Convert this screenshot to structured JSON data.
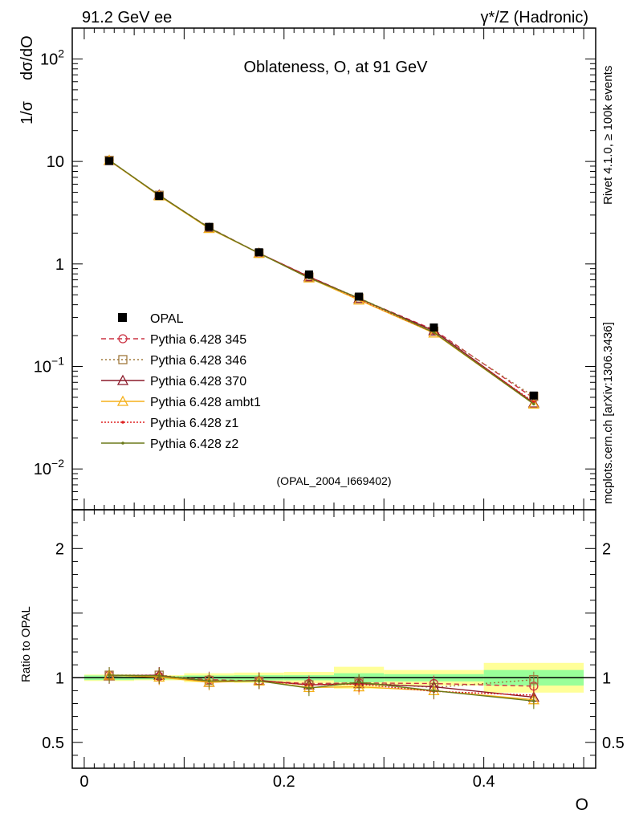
{
  "header": {
    "left": "91.2 GeV ee",
    "right": "γ*/Z (Hadronic)"
  },
  "side": {
    "rivet": "Rivet 4.1.0, ≥ 100k events",
    "mcplots": "mcplots.cern.ch [arXiv:1306.3436]"
  },
  "chart_data": [
    {
      "type": "line",
      "title": "Oblateness, O, at 91 GeV",
      "ylabel_left": "1/σ",
      "ylabel_right": "dσ/dO",
      "xlabel": "O",
      "yscale": "log",
      "ylim": [
        0.004,
        200
      ],
      "xlim": [
        -0.012,
        0.512
      ],
      "watermark": "(OPAL_2004_I669402)",
      "x": [
        0.025,
        0.075,
        0.125,
        0.175,
        0.225,
        0.275,
        0.35,
        0.45
      ],
      "data": {
        "name": "OPAL",
        "values": [
          10.1,
          4.6,
          2.3,
          1.3,
          0.79,
          0.48,
          0.24,
          0.052
        ]
      },
      "series": [
        {
          "name": "Pythia 6.428 345",
          "color": "#cc3344",
          "dash": "6,4",
          "marker": "circle",
          "values": [
            10.3,
            4.65,
            2.27,
            1.27,
            0.755,
            0.46,
            0.228,
            0.049
          ]
        },
        {
          "name": "Pythia 6.428 346",
          "color": "#a0783c",
          "dash": "2,3",
          "marker": "square",
          "values": [
            10.25,
            4.68,
            2.26,
            1.27,
            0.745,
            0.465,
            0.221,
            0.051
          ]
        },
        {
          "name": "Pythia 6.428 370",
          "color": "#8b1a2a",
          "dash": "",
          "marker": "triangle",
          "values": [
            10.2,
            4.7,
            2.23,
            1.275,
            0.75,
            0.46,
            0.223,
            0.044
          ]
        },
        {
          "name": "Pythia 6.428 ambt1",
          "color": "#f5b01a",
          "dash": "",
          "marker": "triangle",
          "values": [
            10.25,
            4.62,
            2.22,
            1.27,
            0.73,
            0.445,
            0.212,
            0.043
          ]
        },
        {
          "name": "Pythia 6.428 z1",
          "color": "#dd2222",
          "dash": "2,2",
          "marker": "dot",
          "values": [
            10.3,
            4.68,
            2.25,
            1.27,
            0.745,
            0.455,
            0.214,
            0.045
          ]
        },
        {
          "name": "Pythia 6.428 z2",
          "color": "#6b7a1a",
          "dash": "",
          "marker": "dot",
          "values": [
            10.3,
            4.68,
            2.25,
            1.27,
            0.73,
            0.465,
            0.215,
            0.043
          ]
        }
      ],
      "yticks": [
        {
          "value": 0.01,
          "base": "10",
          "exp": "−2"
        },
        {
          "value": 0.1,
          "base": "10",
          "exp": "−1"
        },
        {
          "value": 1,
          "label": "1"
        },
        {
          "value": 10,
          "label": "10"
        },
        {
          "value": 100,
          "base": "10",
          "exp": "2"
        }
      ]
    },
    {
      "type": "line",
      "ylabel": "Ratio to OPAL",
      "ylim": [
        0.3,
        2.3
      ],
      "yticks": [
        {
          "value": 0.5,
          "label": "0.5"
        },
        {
          "value": 1,
          "label": "1"
        },
        {
          "value": 2,
          "label": "2"
        }
      ],
      "xticks": [
        {
          "value": 0,
          "label": "0"
        },
        {
          "value": 0.2,
          "label": "0.2"
        },
        {
          "value": 0.4,
          "label": "0.4"
        }
      ],
      "bins": [
        [
          0,
          0.05
        ],
        [
          0.05,
          0.1
        ],
        [
          0.1,
          0.15
        ],
        [
          0.15,
          0.2
        ],
        [
          0.2,
          0.25
        ],
        [
          0.25,
          0.3
        ],
        [
          0.3,
          0.4
        ],
        [
          0.4,
          0.5
        ]
      ],
      "band_stat": [
        0.018,
        0.013,
        0.018,
        0.02,
        0.02,
        0.035,
        0.028,
        0.06
      ],
      "band_total": [
        0.025,
        0.02,
        0.035,
        0.04,
        0.045,
        0.085,
        0.06,
        0.115
      ],
      "series": [
        {
          "name": "Pythia 6.428 345",
          "values": [
            1.02,
            1.01,
            0.985,
            0.975,
            0.955,
            0.96,
            0.955,
            0.935
          ]
        },
        {
          "name": "Pythia 6.428 346",
          "values": [
            1.02,
            1.02,
            0.98,
            0.975,
            0.945,
            0.965,
            0.925,
            0.985
          ]
        },
        {
          "name": "Pythia 6.428 370",
          "values": [
            1.015,
            1.02,
            0.965,
            0.98,
            0.945,
            0.955,
            0.93,
            0.85
          ]
        },
        {
          "name": "Pythia 6.428 ambt1",
          "values": [
            1.02,
            1.005,
            0.965,
            0.975,
            0.925,
            0.93,
            0.9,
            0.83
          ]
        },
        {
          "name": "Pythia 6.428 z1",
          "values": [
            1.02,
            1.015,
            0.975,
            0.975,
            0.945,
            0.95,
            0.895,
            0.865
          ]
        },
        {
          "name": "Pythia 6.428 z2",
          "values": [
            1.02,
            1.015,
            0.975,
            0.975,
            0.92,
            0.965,
            0.9,
            0.82
          ]
        }
      ]
    }
  ]
}
